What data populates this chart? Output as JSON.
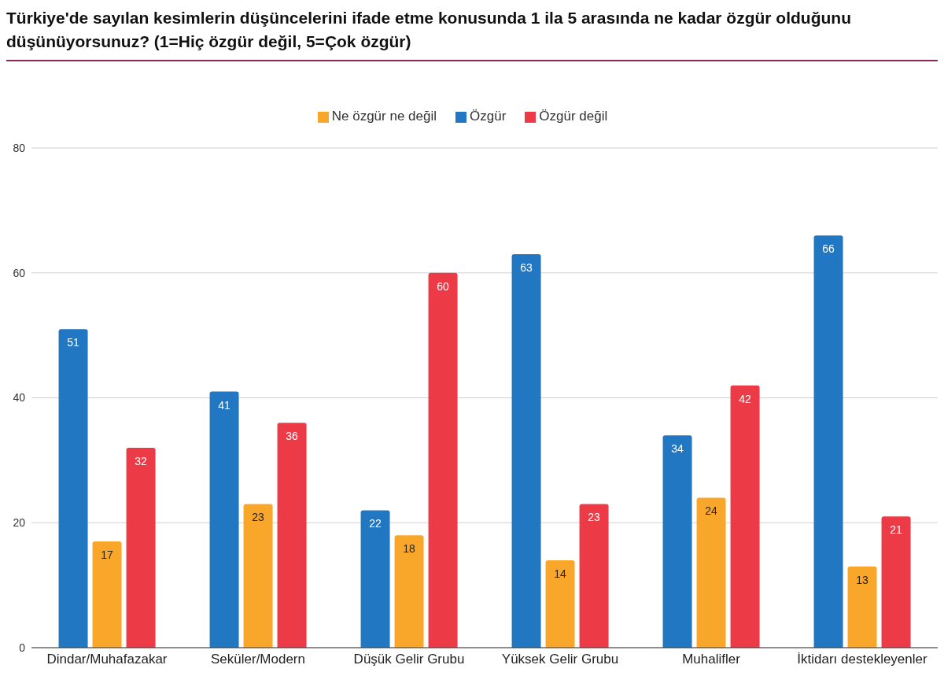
{
  "chart_data": {
    "type": "bar",
    "title": "Türkiye'de sayılan kesimlerin düşüncelerini ifade etme konusunda 1 ila 5 arasında ne kadar özgür olduğunu düşünüyorsunuz? (1=Hiç özgür değil, 5=Çok özgür)",
    "categories": [
      "Dindar/Muhafazakar",
      "Seküler/Modern",
      "Düşük Gelir Grubu",
      "Yüksek Gelir Grubu",
      "Muhalifler",
      "İktidarı destekleyenler"
    ],
    "series": [
      {
        "name": "Özgür",
        "color": "#2277c2",
        "values": [
          51,
          41,
          22,
          63,
          34,
          66
        ]
      },
      {
        "name": "Ne özgür ne değil",
        "color": "#f9a72b",
        "values": [
          17,
          23,
          18,
          14,
          24,
          13
        ]
      },
      {
        "name": "Özgür değil",
        "color": "#ec3b47",
        "values": [
          32,
          36,
          60,
          23,
          42,
          21
        ]
      }
    ],
    "ylim": [
      0,
      80
    ],
    "yticks": [
      0,
      20,
      40,
      60,
      80
    ],
    "grid": "y",
    "legend": "top",
    "data_labels": true
  }
}
